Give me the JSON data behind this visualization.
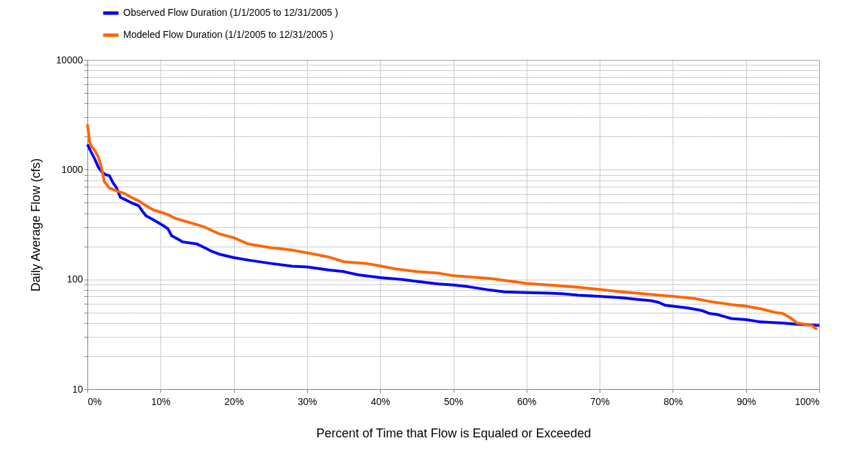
{
  "chart_data": {
    "type": "line",
    "xlabel": "Percent of Time that Flow is Equaled or Exceeded",
    "ylabel": "Daily Average Flow (cfs)",
    "log": "y",
    "grid": true,
    "legend": "top",
    "line_style": "solid",
    "marker": "none",
    "xlim": [
      0,
      100
    ],
    "xticks": [
      {
        "value": 0,
        "label": "0%"
      },
      {
        "value": 10,
        "label": "10%"
      },
      {
        "value": 20,
        "label": "20%"
      },
      {
        "value": 30,
        "label": "30%"
      },
      {
        "value": 40,
        "label": "40%"
      },
      {
        "value": 50,
        "label": "50%"
      },
      {
        "value": 60,
        "label": "60%"
      },
      {
        "value": 70,
        "label": "70%"
      },
      {
        "value": 80,
        "label": "80%"
      },
      {
        "value": 90,
        "label": "90%"
      },
      {
        "value": 100,
        "label": "100%"
      }
    ],
    "ylim": [
      10,
      10000
    ],
    "yticks": [
      10,
      {
        "value": 20,
        "label": null
      },
      {
        "value": 30,
        "label": null
      },
      {
        "value": 40,
        "label": null
      },
      {
        "value": 50,
        "label": null
      },
      {
        "value": 60,
        "label": null
      },
      {
        "value": 70,
        "label": null
      },
      {
        "value": 80,
        "label": null
      },
      {
        "value": 90,
        "label": null
      },
      100,
      {
        "value": 200,
        "label": null
      },
      {
        "value": 300,
        "label": null
      },
      {
        "value": 400,
        "label": null
      },
      {
        "value": 500,
        "label": null
      },
      {
        "value": 600,
        "label": null
      },
      {
        "value": 700,
        "label": null
      },
      {
        "value": 800,
        "label": null
      },
      {
        "value": 900,
        "label": null
      },
      1000,
      {
        "value": 2000,
        "label": null
      },
      {
        "value": 3000,
        "label": null
      },
      {
        "value": 4000,
        "label": null
      },
      {
        "value": 5000,
        "label": null
      },
      {
        "value": 6000,
        "label": null
      },
      {
        "value": 7000,
        "label": null
      },
      {
        "value": 8000,
        "label": null
      },
      {
        "value": 9000,
        "label": null
      },
      10000
    ],
    "series": [
      {
        "name": "Observed Flow Duration (1/1/2005 to 12/31/2005 )",
        "color": "#0000ff",
        "x": [
          0,
          0.5,
          1,
          1.5,
          2,
          2.5,
          3,
          3.5,
          4,
          4.5,
          5,
          6,
          7,
          7.5,
          8,
          9,
          10,
          11,
          11.5,
          12,
          13,
          15,
          16,
          17,
          18,
          20,
          22,
          25,
          28,
          30,
          33,
          35,
          37,
          40,
          43,
          45,
          48,
          50,
          52,
          55,
          57,
          60,
          63,
          65,
          67,
          70,
          73,
          75,
          77,
          78,
          79,
          80,
          82,
          84,
          85,
          86,
          87,
          88,
          90,
          92,
          95,
          97,
          100
        ],
        "values": [
          1700,
          1450,
          1250,
          1050,
          950,
          900,
          880,
          760,
          680,
          560,
          540,
          500,
          470,
          420,
          380,
          350,
          320,
          290,
          250,
          240,
          220,
          210,
          195,
          180,
          170,
          158,
          150,
          140,
          132,
          130,
          122,
          118,
          110,
          104,
          100,
          96,
          91,
          89,
          86,
          80,
          77,
          76,
          75,
          74,
          72,
          70,
          68,
          66,
          64,
          62,
          58,
          57,
          55,
          52,
          49,
          48,
          46,
          44,
          43,
          41,
          40,
          39,
          38
        ]
      },
      {
        "name": "Modeled Flow Duration (1/1/2005 to 12/31/2005 )",
        "color": "#ff6600",
        "x": [
          0,
          0.3,
          0.5,
          1,
          1.5,
          2,
          2.3,
          3,
          4,
          5,
          6,
          7,
          8,
          9,
          10,
          11,
          12,
          14,
          16,
          18,
          20,
          22,
          25,
          28,
          30,
          33,
          35,
          38,
          40,
          42,
          45,
          48,
          50,
          55,
          58,
          60,
          63,
          65,
          67,
          70,
          73,
          75,
          78,
          80,
          83,
          85,
          88,
          90,
          92,
          94,
          95,
          96,
          97,
          98,
          99,
          99.7
        ],
        "values": [
          2600,
          1800,
          1650,
          1500,
          1300,
          1000,
          780,
          680,
          640,
          610,
          560,
          520,
          470,
          430,
          410,
          390,
          360,
          330,
          300,
          260,
          240,
          210,
          195,
          185,
          175,
          160,
          145,
          140,
          133,
          125,
          118,
          114,
          108,
          102,
          96,
          92,
          89,
          87,
          85,
          81,
          77,
          75,
          72,
          70,
          67,
          63,
          59,
          57,
          54,
          50,
          49,
          45,
          40,
          39,
          38,
          35
        ]
      }
    ]
  }
}
